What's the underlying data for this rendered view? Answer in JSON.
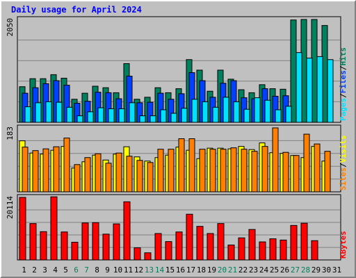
{
  "title": "Daily usage for April 2024",
  "colors": {
    "hits": "#00805c",
    "files": "#0040ff",
    "pages": "#00e0ff",
    "visits": "#ffff00",
    "sites": "#ff8000",
    "kbytes": "#ff0000",
    "weekend_label": "#00805c",
    "weekday_label": "#000000",
    "title": "#0000ff"
  },
  "chart_data": [
    {
      "type": "bar",
      "panel": "hits-files-pages",
      "y_max_label": "2050",
      "ylim": [
        0,
        2050
      ],
      "legend": [
        {
          "label": "Pages",
          "color": "#00e0ff"
        },
        {
          "label": "/",
          "color": "#000000"
        },
        {
          "label": "Files",
          "color": "#0040ff"
        },
        {
          "label": "/",
          "color": "#000000"
        },
        {
          "label": "Hits",
          "color": "#00805c"
        }
      ],
      "categories": [
        "1",
        "2",
        "3",
        "4",
        "5",
        "6",
        "7",
        "8",
        "9",
        "10",
        "11",
        "12",
        "13",
        "14",
        "15",
        "16",
        "17",
        "18",
        "19",
        "20",
        "21",
        "22",
        "23",
        "24",
        "25",
        "26",
        "27",
        "28",
        "29",
        "30",
        "31"
      ],
      "weekend_days": [
        "6",
        "7",
        "13",
        "14",
        "20",
        "21",
        "27",
        "28"
      ],
      "series": [
        {
          "name": "Hits",
          "values": [
            710,
            870,
            870,
            950,
            880,
            460,
            580,
            720,
            690,
            590,
            1170,
            460,
            500,
            690,
            590,
            670,
            1250,
            1040,
            620,
            1040,
            860,
            650,
            590,
            750,
            670,
            660,
            2040,
            2050,
            2050,
            1930,
            0
          ]
        },
        {
          "name": "Files",
          "values": [
            580,
            690,
            770,
            830,
            740,
            380,
            420,
            600,
            590,
            470,
            920,
            390,
            400,
            580,
            460,
            570,
            990,
            830,
            500,
            780,
            830,
            490,
            470,
            670,
            520,
            530,
            0,
            0,
            0,
            0,
            0
          ]
        },
        {
          "name": "Pages",
          "values": [
            310,
            390,
            410,
            400,
            300,
            130,
            210,
            290,
            270,
            270,
            390,
            130,
            130,
            250,
            180,
            280,
            460,
            410,
            300,
            500,
            410,
            260,
            490,
            440,
            250,
            320,
            1390,
            1280,
            1310,
            1250,
            0
          ]
        }
      ]
    },
    {
      "type": "bar",
      "panel": "visits-sites",
      "y_max_label": "183",
      "ylim": [
        0,
        183
      ],
      "legend": [
        {
          "label": "Sites",
          "color": "#ff8000"
        },
        {
          "label": "/",
          "color": "#000000"
        },
        {
          "label": "Visits",
          "color": "#ffff00"
        }
      ],
      "categories": [
        "1",
        "2",
        "3",
        "4",
        "5",
        "6",
        "7",
        "8",
        "9",
        "10",
        "11",
        "12",
        "13",
        "14",
        "15",
        "16",
        "17",
        "18",
        "19",
        "20",
        "21",
        "22",
        "23",
        "24",
        "25",
        "26",
        "27",
        "28",
        "29",
        "30",
        "31"
      ],
      "series": [
        {
          "name": "Visits",
          "values": [
            146,
            111,
            108,
            119,
            130,
            68,
            86,
            105,
            91,
            108,
            129,
            100,
            88,
            98,
            105,
            128,
            119,
            95,
            125,
            125,
            123,
            130,
            121,
            140,
            112,
            110,
            104,
            98,
            130,
            88,
            0
          ]
        },
        {
          "name": "Sites",
          "values": [
            128,
            118,
            123,
            129,
            154,
            78,
            98,
            109,
            82,
            111,
            102,
            90,
            84,
            122,
            122,
            152,
            152,
            122,
            122,
            122,
            126,
            122,
            116,
            130,
            183,
            113,
            104,
            165,
            137,
            116,
            0
          ]
        }
      ]
    },
    {
      "type": "bar",
      "panel": "kbytes",
      "y_max_label": "20114",
      "ylim": [
        0,
        20114
      ],
      "legend": [
        {
          "label": "KBytes",
          "color": "#ff0000"
        }
      ],
      "categories": [
        "1",
        "2",
        "3",
        "4",
        "5",
        "6",
        "7",
        "8",
        "9",
        "10",
        "11",
        "12",
        "13",
        "14",
        "15",
        "16",
        "17",
        "18",
        "19",
        "20",
        "21",
        "22",
        "23",
        "24",
        "25",
        "26",
        "27",
        "28",
        "29",
        "30",
        "31"
      ],
      "series": [
        {
          "name": "KBytes",
          "values": [
            20114,
            11700,
            9100,
            20300,
            9000,
            5700,
            11900,
            12000,
            8300,
            11600,
            18700,
            3900,
            2300,
            8500,
            5900,
            9000,
            14700,
            10800,
            8500,
            11700,
            4800,
            7100,
            9800,
            5800,
            6800,
            6400,
            11100,
            11800,
            6200,
            0,
            0
          ]
        }
      ]
    }
  ]
}
